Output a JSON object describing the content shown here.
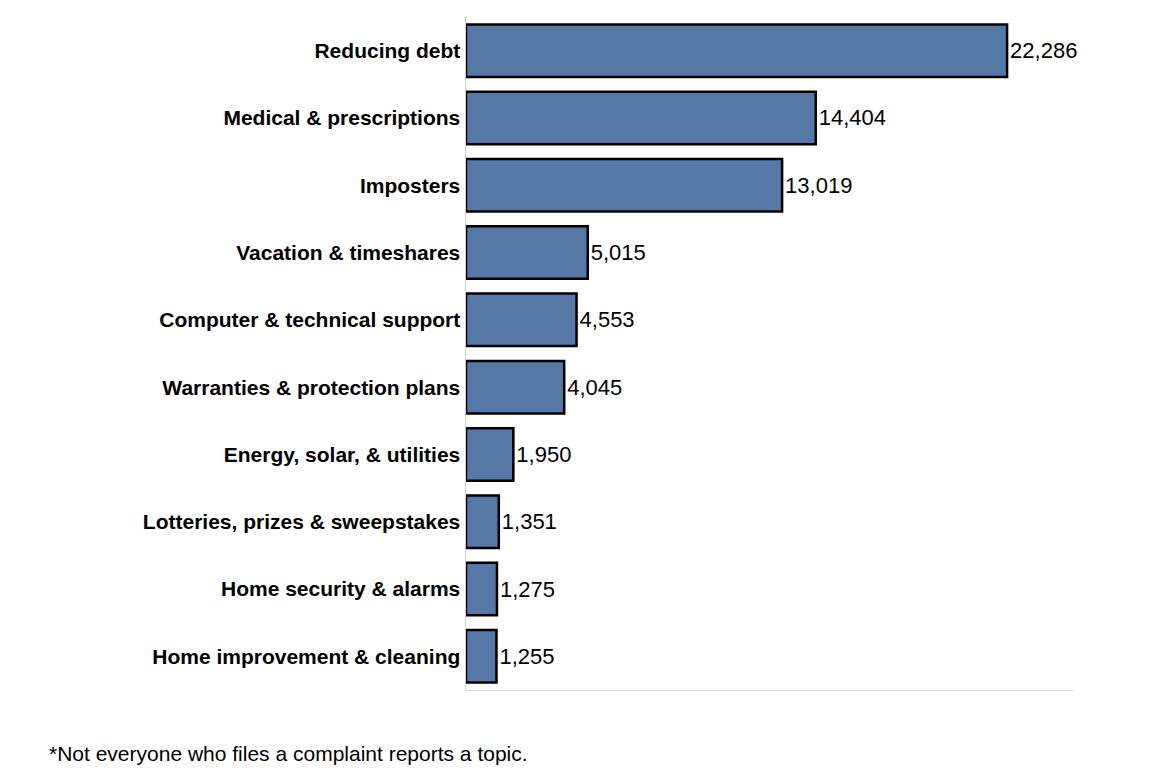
{
  "chart_data": {
    "type": "bar",
    "orientation": "horizontal",
    "categories": [
      "Reducing debt",
      "Medical & prescriptions",
      "Imposters",
      "Vacation & timeshares",
      "Computer & technical support",
      "Warranties & protection plans",
      "Energy, solar, & utilities",
      "Lotteries, prizes & sweepstakes",
      "Home security & alarms",
      "Home improvement & cleaning"
    ],
    "values": [
      22286,
      14404,
      13019,
      5015,
      4553,
      4045,
      1950,
      1351,
      1275,
      1255
    ],
    "value_labels": [
      "22,286",
      "14,404",
      "13,019",
      "5,015",
      "4,553",
      "4,045",
      "1,950",
      "1,351",
      "1,275",
      "1,255"
    ],
    "color": "#5578a6",
    "xlim": [
      0,
      25000
    ],
    "grid": false,
    "data_labels": true,
    "tick_labels": "y",
    "annotations": [
      "*Not everyone who files a complaint reports a topic."
    ]
  }
}
